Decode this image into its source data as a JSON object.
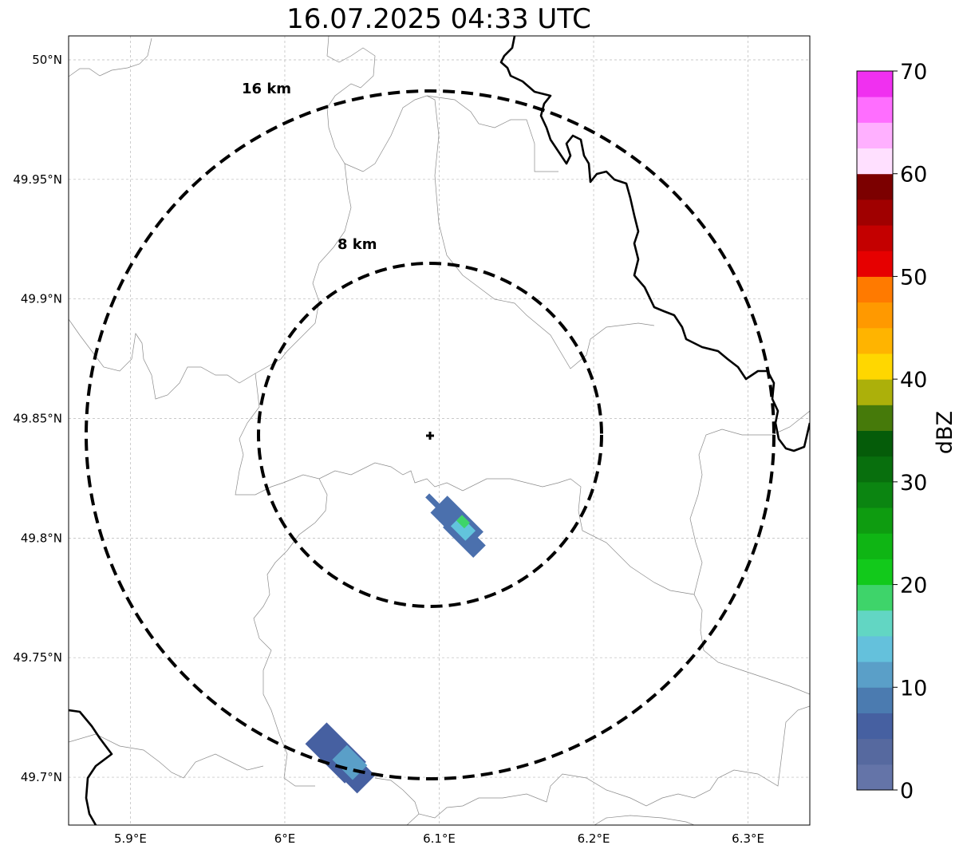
{
  "title": "16.07.2025 04:33 UTC",
  "map": {
    "lon_range": [
      5.86,
      6.34
    ],
    "lat_range": [
      49.68,
      50.01
    ],
    "lon_ticks": [
      {
        "value": 5.9,
        "label": "5.9°E"
      },
      {
        "value": 6.0,
        "label": "6°E"
      },
      {
        "value": 6.1,
        "label": "6.1°E"
      },
      {
        "value": 6.2,
        "label": "6.2°E"
      },
      {
        "value": 6.3,
        "label": "6.3°E"
      }
    ],
    "lat_ticks": [
      {
        "value": 50.0,
        "label": "50°N"
      },
      {
        "value": 49.95,
        "label": "49.95°N"
      },
      {
        "value": 49.9,
        "label": "49.9°N"
      },
      {
        "value": 49.85,
        "label": "49.85°N"
      },
      {
        "value": 49.8,
        "label": "49.8°N"
      },
      {
        "value": 49.75,
        "label": "49.75°N"
      },
      {
        "value": 49.7,
        "label": "49.7°N"
      }
    ],
    "grid": true,
    "radar_site": {
      "lon": 6.094,
      "lat": 49.843
    },
    "range_rings": [
      {
        "label": "8 km"
      },
      {
        "label": "16 km"
      }
    ]
  },
  "colorbar": {
    "label": "dBZ",
    "min": 0,
    "max": 70,
    "tick_labels": [
      "0",
      "10",
      "20",
      "30",
      "40",
      "50",
      "60",
      "70"
    ],
    "colors": [
      "#6474a8",
      "#56699f",
      "#4660a1",
      "#4b7bb0",
      "#5a9fc8",
      "#64c1dc",
      "#62d6c3",
      "#3ed46a",
      "#12c91b",
      "#0fb514",
      "#0e9c10",
      "#0b8511",
      "#086f0d",
      "#055c09",
      "#467a0a",
      "#acb00a",
      "#ffd700",
      "#ffb400",
      "#ff9900",
      "#ff7a00",
      "#e60000",
      "#c40000",
      "#a00000",
      "#7c0000",
      "#ffe0ff",
      "#ffb0ff",
      "#ff6eff",
      "#f030f0"
    ]
  },
  "echoes": [
    {
      "name": "echo-cell-central",
      "color": "#4b70ad"
    },
    {
      "name": "echo-cell-central-core",
      "color": "#62c4dc"
    },
    {
      "name": "echo-cell-central-peak",
      "color": "#3ed46a"
    },
    {
      "name": "echo-cell-south",
      "color": "#4660a1"
    },
    {
      "name": "echo-cell-south-core",
      "color": "#5a9fc8"
    }
  ]
}
